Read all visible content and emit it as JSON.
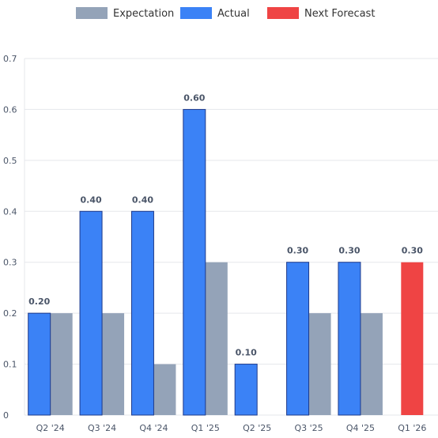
{
  "chart_data": {
    "type": "bar",
    "categories": [
      "Q2 '24",
      "Q3 '24",
      "Q4 '24",
      "Q1 '25",
      "Q2 '25",
      "Q3 '25",
      "Q4 '25",
      "Q1 '26"
    ],
    "series": [
      {
        "name": "Actual",
        "color": "#3b82f6",
        "values": [
          0.2,
          0.4,
          0.4,
          0.6,
          0.1,
          0.3,
          0.3,
          null
        ]
      },
      {
        "name": "Expectation",
        "color": "#94a3b8",
        "values": [
          0.2,
          0.2,
          0.1,
          0.3,
          null,
          0.2,
          0.2,
          null
        ]
      },
      {
        "name": "Next Forecast",
        "color": "#ef4444",
        "values": [
          null,
          null,
          null,
          null,
          null,
          null,
          null,
          0.3
        ]
      }
    ],
    "data_labels": [
      "0.20",
      "0.40",
      "0.40",
      "0.60",
      "0.10",
      "0.30",
      "0.30",
      "0.30"
    ],
    "legend": {
      "placement": "top-center",
      "items": [
        {
          "name": "Expectation",
          "color": "#94a3b8"
        },
        {
          "name": "Actual",
          "color": "#3b82f6"
        },
        {
          "name": "Next Forecast",
          "color": "#ef4444"
        }
      ]
    },
    "y_ticks": [
      "0",
      "0.1",
      "0.2",
      "0.3",
      "0.4",
      "0.5",
      "0.6",
      "0.7"
    ],
    "ylim": [
      0,
      0.7
    ],
    "grid": true
  }
}
